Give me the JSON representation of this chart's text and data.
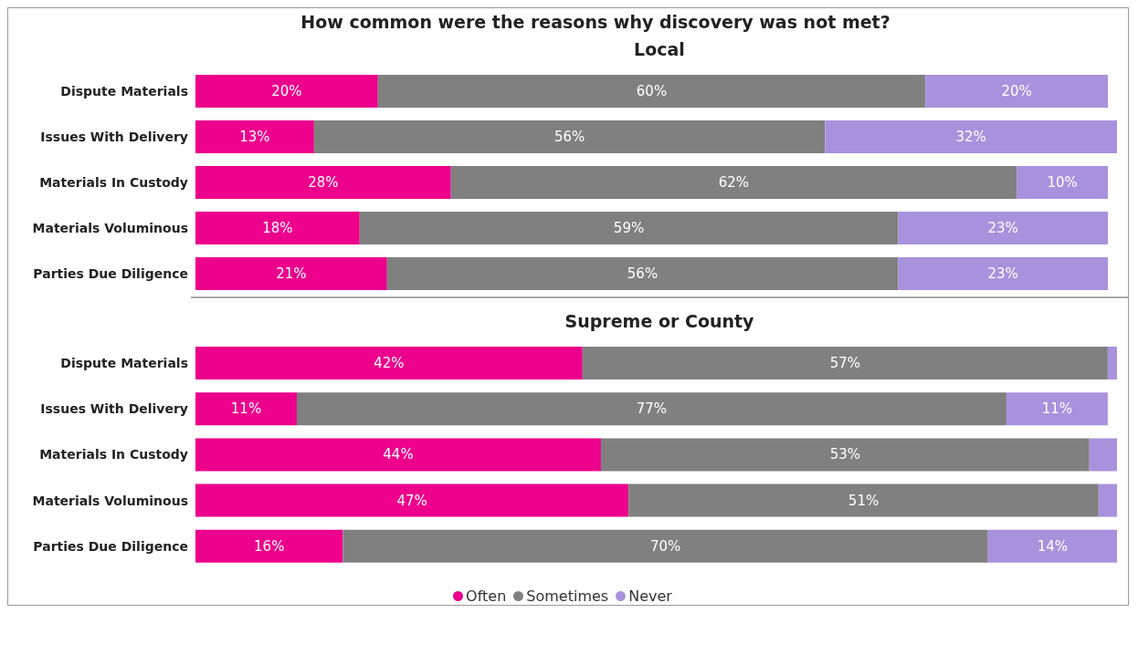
{
  "chart_data": [
    {
      "type": "bar",
      "orientation": "horizontal",
      "stacked": true,
      "title": "How common were the reasons why discovery was not met?",
      "subtitle": "Local",
      "categories": [
        "Dispute Materials",
        "Issues With Delivery",
        "Materials In Custody",
        "Materials Voluminous",
        "Parties Due Diligence"
      ],
      "series": [
        {
          "color": "#ec008c",
          "values": [
            20,
            13,
            28,
            18,
            21
          ],
          "value_labels": [
            "20%",
            "13%",
            "28%",
            "18%",
            "21%"
          ]
        },
        {
          "color": "#808080",
          "values": [
            60,
            56,
            62,
            59,
            56
          ],
          "value_labels": [
            "60%",
            "56%",
            "62%",
            "59%",
            "56%"
          ]
        },
        {
          "color": "#a992dd",
          "values": [
            20,
            32,
            10,
            23,
            23
          ],
          "value_labels": [
            "20%",
            "32%",
            "10%",
            "23%",
            "23%"
          ]
        }
      ]
    },
    {
      "type": "bar",
      "orientation": "horizontal",
      "stacked": true,
      "title": "Supreme or County",
      "legend": "bottom",
      "categories": [
        "Dispute Materials",
        "Issues With Delivery",
        "Materials In Custody",
        "Materials Voluminous",
        "Parties Due Diligence"
      ],
      "series": [
        {
          "name": "Often",
          "color": "#ec008c",
          "values": [
            42,
            11,
            44,
            47,
            16
          ],
          "value_labels": [
            "42%",
            "11%",
            "44%",
            "47%",
            "16%"
          ]
        },
        {
          "name": "Sometimes",
          "color": "#808080",
          "values": [
            57,
            77,
            53,
            51,
            70
          ],
          "value_labels": [
            "57%",
            "77%",
            "53%",
            "51%",
            "70%"
          ]
        },
        {
          "name": "Never",
          "color": "#a992dd",
          "values": [
            1,
            11,
            3,
            2,
            14
          ],
          "value_labels": [
            null,
            "11%",
            null,
            null,
            "14%"
          ]
        }
      ]
    }
  ]
}
